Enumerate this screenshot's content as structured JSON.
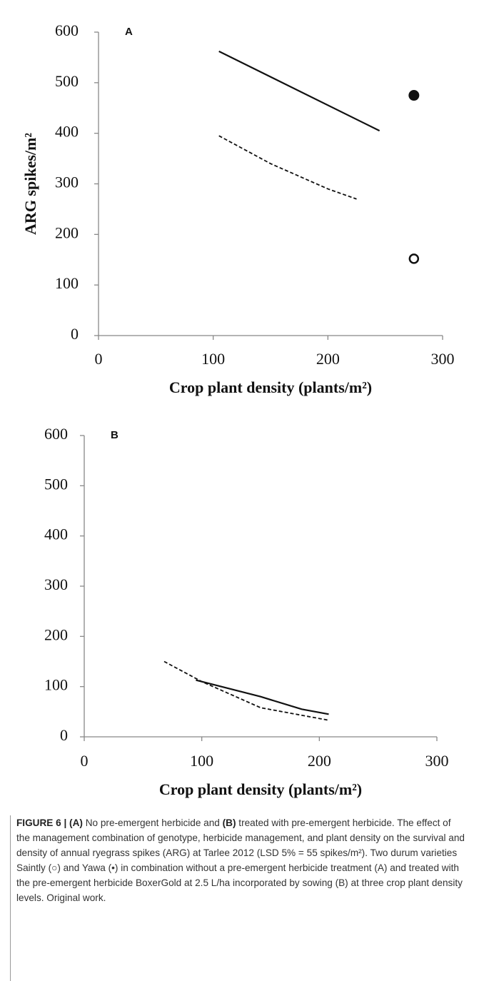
{
  "chart_data": [
    {
      "type": "line",
      "panel_label": "A",
      "y_label": "ARG spikes/m²",
      "x_label": "Crop plant density (plants/m²)",
      "xlim": [
        0,
        300
      ],
      "xticks": [
        0,
        100,
        200,
        300
      ],
      "ylim": [
        0,
        600
      ],
      "yticks": [
        0,
        100,
        200,
        300,
        400,
        500,
        600
      ],
      "series": [
        {
          "mode": "line",
          "dash": "solid",
          "color": "#111111",
          "x": [
            105,
            245
          ],
          "values": [
            562,
            405
          ]
        },
        {
          "mode": "line",
          "dash": "dashed",
          "color": "#111111",
          "x": [
            105,
            150,
            200,
            225
          ],
          "values": [
            395,
            340,
            290,
            270
          ]
        },
        {
          "mode": "marker",
          "marker": "filled",
          "color": "#111111",
          "x": [
            275
          ],
          "values": [
            475
          ]
        },
        {
          "mode": "marker",
          "marker": "open",
          "color": "#111111",
          "x": [
            275
          ],
          "values": [
            152
          ]
        }
      ]
    },
    {
      "type": "line",
      "panel_label": "B",
      "x_label": "Crop plant density (plants/m²)",
      "xlim": [
        0,
        300
      ],
      "xticks": [
        0,
        100,
        200,
        300
      ],
      "ylim": [
        0,
        600
      ],
      "yticks": [
        0,
        100,
        200,
        300,
        400,
        500,
        600
      ],
      "series": [
        {
          "mode": "line",
          "dash": "solid",
          "color": "#111111",
          "x": [
            95,
            150,
            185,
            208
          ],
          "values": [
            113,
            80,
            55,
            45
          ]
        },
        {
          "mode": "line",
          "dash": "dashed",
          "color": "#111111",
          "x": [
            68,
            100,
            150,
            208
          ],
          "values": [
            150,
            110,
            58,
            33
          ]
        }
      ]
    }
  ],
  "caption": [
    {
      "text": "FIGURE 6 | (A)",
      "bold": true
    },
    {
      "text": " No pre-emergent herbicide and ",
      "bold": false
    },
    {
      "text": "(B)",
      "bold": true
    },
    {
      "text": " treated with pre-emergent herbicide. The effect of the management combination of genotype, herbicide management, and plant density on the survival and density of annual ryegrass spikes (ARG) at Tarlee 2012 (LSD 5% = 55 spikes/m²). Two durum varieties Saintly (○) and Yawa (•) in combination without a pre-emergent herbicide treatment (A) and treated with the pre-emergent herbicide BoxerGold at 2.5 L/ha incorporated by sowing (B) at three crop plant density levels. Original work.",
      "bold": false
    }
  ]
}
